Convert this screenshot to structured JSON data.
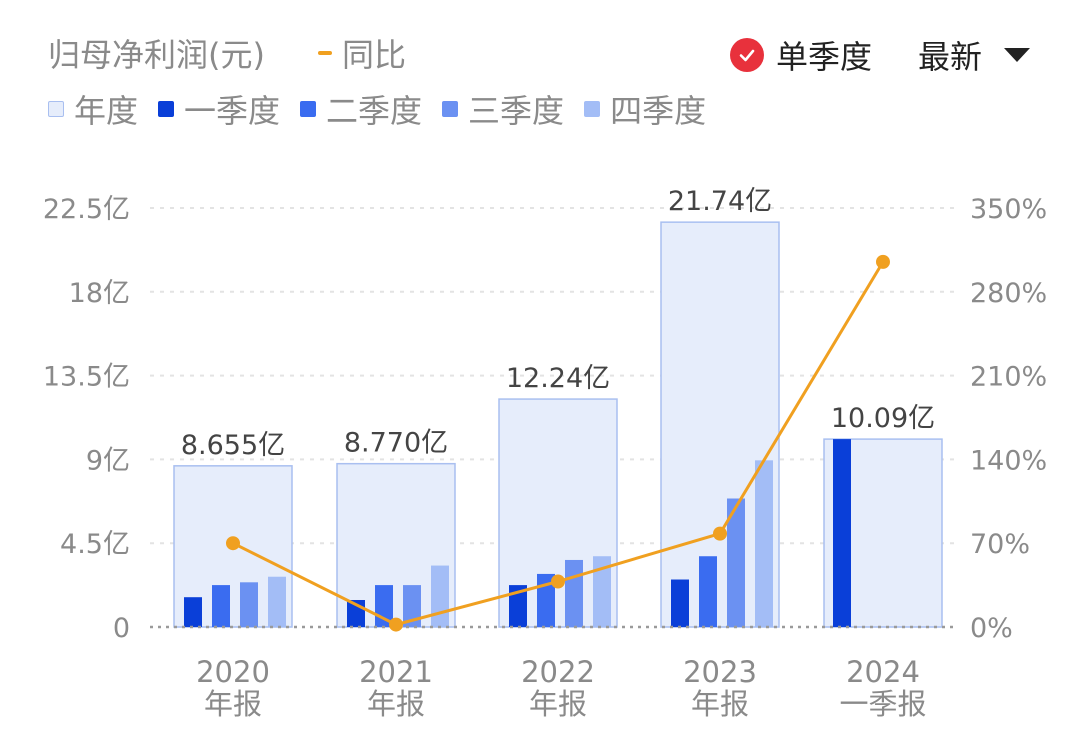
{
  "header": {
    "title": "归母净利润(元)",
    "yoy_legend": "同比",
    "single_quarter_label": "单季度",
    "latest_label": "最新"
  },
  "legend": [
    {
      "label": "年度",
      "color": "#e6edfb"
    },
    {
      "label": "一季度",
      "color": "#0a3fd8"
    },
    {
      "label": "二季度",
      "color": "#3a6cf0"
    },
    {
      "label": "三季度",
      "color": "#6b91f2"
    },
    {
      "label": "四季度",
      "color": "#a3bdf6"
    }
  ],
  "colors": {
    "annual_fill": "#e6edfb",
    "annual_stroke": "#a9bff0",
    "q1": "#0a3fd8",
    "q2": "#3a6cf0",
    "q3": "#6b91f2",
    "q4": "#a3bdf6",
    "yoy_line": "#f0a020",
    "axis_text": "#8a8a8a",
    "value_text": "#444444"
  },
  "chart_data": {
    "type": "bar",
    "categories": [
      {
        "year": "2020",
        "period": "年报"
      },
      {
        "year": "2021",
        "period": "年报"
      },
      {
        "year": "2022",
        "period": "年报"
      },
      {
        "year": "2023",
        "period": "年报"
      },
      {
        "year": "2024",
        "period": "一季报"
      }
    ],
    "annual_values": [
      8.655,
      8.77,
      12.24,
      21.74,
      10.09
    ],
    "annual_labels": [
      "8.655亿",
      "8.770亿",
      "12.24亿",
      "21.74亿",
      "10.09亿"
    ],
    "quarterly": [
      [
        1.6,
        2.25,
        2.4,
        2.7
      ],
      [
        1.45,
        2.25,
        2.25,
        3.3
      ],
      [
        2.25,
        2.85,
        3.6,
        3.8
      ],
      [
        2.55,
        3.8,
        6.9,
        8.95
      ],
      [
        10.09,
        null,
        null,
        null
      ]
    ],
    "yoy_percent": [
      70,
      2,
      38,
      78,
      305
    ],
    "left_axis": {
      "ticks": [
        0,
        4.5,
        9,
        13.5,
        18,
        22.5
      ],
      "labels": [
        "0",
        "4.5亿",
        "9亿",
        "13.5亿",
        "18亿",
        "22.5亿"
      ],
      "range": [
        0,
        22.5
      ]
    },
    "right_axis": {
      "ticks": [
        0,
        70,
        140,
        210,
        280,
        350
      ],
      "labels": [
        "0%",
        "70%",
        "140%",
        "210%",
        "280%",
        "350%"
      ],
      "range": [
        0,
        350
      ]
    },
    "grid": true
  }
}
